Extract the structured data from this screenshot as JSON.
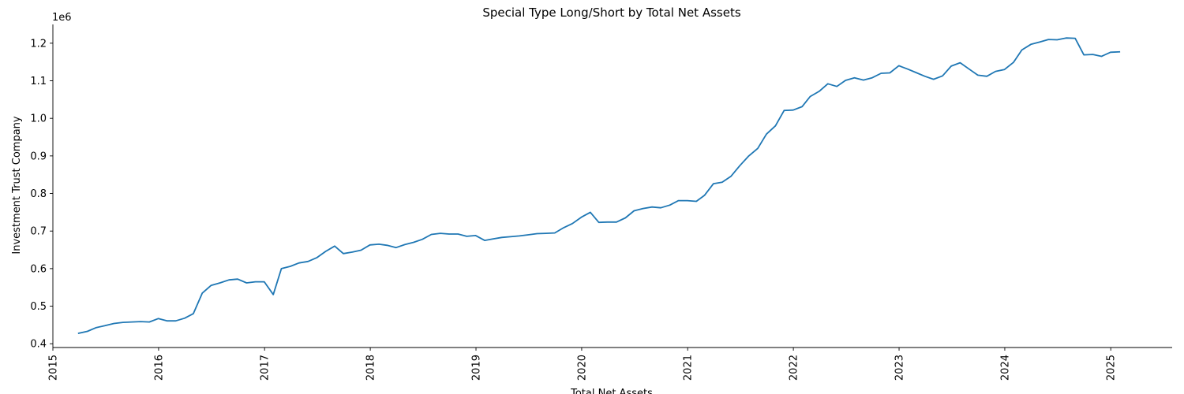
{
  "chart_data": {
    "type": "line",
    "title": "Special Type Long/Short by Total Net Assets",
    "xlabel": "Total Net Assets",
    "ylabel": "Investment Trust Company",
    "offset_label": "1e6",
    "xlim": [
      "2015-01-01",
      "2025-08-01"
    ],
    "ylim": [
      390000,
      1250000
    ],
    "x_ticks": [
      "2015",
      "2016",
      "2017",
      "2018",
      "2019",
      "2020",
      "2021",
      "2022",
      "2023",
      "2024",
      "2025"
    ],
    "y_ticks": [
      "0.4",
      "0.5",
      "0.6",
      "0.7",
      "0.8",
      "0.9",
      "1.0",
      "1.1",
      "1.2"
    ],
    "grid": false,
    "series": [
      {
        "color": "#1f77b4",
        "x": [
          "2015-03-31",
          "2015-04-30",
          "2015-05-31",
          "2015-06-30",
          "2015-07-31",
          "2015-08-31",
          "2015-09-30",
          "2015-10-31",
          "2015-11-30",
          "2015-12-31",
          "2016-01-31",
          "2016-02-29",
          "2016-03-31",
          "2016-04-30",
          "2016-05-31",
          "2016-06-30",
          "2016-07-31",
          "2016-08-31",
          "2016-09-30",
          "2016-10-31",
          "2016-11-30",
          "2016-12-31",
          "2017-01-31",
          "2017-02-28",
          "2017-03-31",
          "2017-04-30",
          "2017-05-31",
          "2017-06-30",
          "2017-07-31",
          "2017-08-31",
          "2017-09-30",
          "2017-10-31",
          "2017-11-30",
          "2017-12-31",
          "2018-01-31",
          "2018-02-28",
          "2018-03-31",
          "2018-04-30",
          "2018-05-31",
          "2018-06-30",
          "2018-07-31",
          "2018-08-31",
          "2018-09-30",
          "2018-10-31",
          "2018-11-30",
          "2018-12-31",
          "2019-01-31",
          "2019-02-28",
          "2019-03-31",
          "2019-04-30",
          "2019-05-31",
          "2019-06-30",
          "2019-07-31",
          "2019-08-31",
          "2019-09-30",
          "2019-10-31",
          "2019-11-30",
          "2019-12-31",
          "2020-01-31",
          "2020-02-29",
          "2020-03-31",
          "2020-04-30",
          "2020-05-31",
          "2020-06-30",
          "2020-07-31",
          "2020-08-31",
          "2020-09-30",
          "2020-10-31",
          "2020-11-30",
          "2020-12-31",
          "2021-01-31",
          "2021-02-28",
          "2021-03-31",
          "2021-04-30",
          "2021-05-31",
          "2021-06-30",
          "2021-07-31",
          "2021-08-31",
          "2021-09-30",
          "2021-10-31",
          "2021-11-30",
          "2021-12-31",
          "2022-01-31",
          "2022-02-28",
          "2022-03-31",
          "2022-04-30",
          "2022-05-31",
          "2022-06-30",
          "2022-07-31",
          "2022-08-31",
          "2022-09-30",
          "2022-10-31",
          "2022-11-30",
          "2022-12-31",
          "2023-01-31",
          "2023-02-28",
          "2023-03-31",
          "2023-04-30",
          "2023-05-31",
          "2023-06-30",
          "2023-07-31",
          "2023-08-31",
          "2023-09-30",
          "2023-10-31",
          "2023-11-30",
          "2023-12-31",
          "2024-01-31",
          "2024-02-29",
          "2024-03-31",
          "2024-04-30",
          "2024-05-31",
          "2024-06-30",
          "2024-07-31",
          "2024-08-31",
          "2024-09-30",
          "2024-10-31",
          "2024-11-30",
          "2024-12-31",
          "2025-01-31"
        ],
        "y": [
          428000,
          433000,
          443000,
          448000,
          454000,
          457000,
          458000,
          459000,
          458000,
          467000,
          461000,
          461000,
          468000,
          480000,
          535000,
          555000,
          562000,
          570000,
          572000,
          562000,
          565000,
          565000,
          531000,
          600000,
          606000,
          615000,
          619000,
          629000,
          646000,
          660000,
          640000,
          644000,
          649000,
          663000,
          665000,
          662000,
          656000,
          664000,
          670000,
          678000,
          691000,
          694000,
          692000,
          692000,
          686000,
          688000,
          675000,
          679000,
          683000,
          685000,
          687000,
          690000,
          693000,
          694000,
          695000,
          709000,
          720000,
          737000,
          750000,
          723000,
          724000,
          724000,
          735000,
          754000,
          760000,
          764000,
          762000,
          769000,
          781000,
          781000,
          779000,
          795000,
          826000,
          830000,
          846000,
          874000,
          900000,
          920000,
          958000,
          980000,
          1021000,
          1022000,
          1031000,
          1058000,
          1072000,
          1092000,
          1085000,
          1101000,
          1108000,
          1102000,
          1108000,
          1120000,
          1121000,
          1140000,
          1131000,
          1122000,
          1112000,
          1104000,
          1113000,
          1139000,
          1148000,
          1131000,
          1115000,
          1112000,
          1125000,
          1130000,
          1149000,
          1182000,
          1197000,
          1203000,
          1210000,
          1209000,
          1214000,
          1213000,
          1169000,
          1170000,
          1165000,
          1176000,
          1177000
        ]
      }
    ]
  }
}
